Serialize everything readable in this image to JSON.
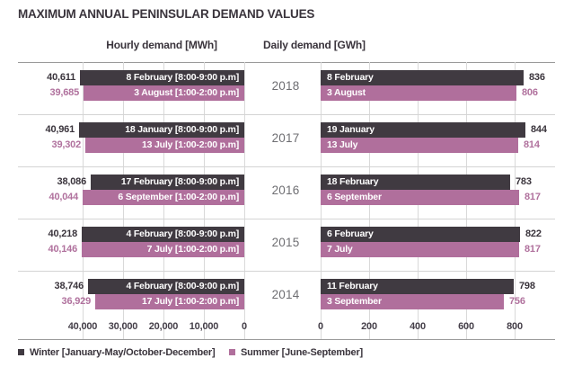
{
  "chart_data": {
    "type": "bar",
    "orientation": "horizontal",
    "title": "MAXIMUM ANNUAL PENINSULAR DEMAND VALUES",
    "panels": [
      {
        "id": "hourly",
        "header": "Hourly demand [MWh]",
        "unit": "MWh",
        "axis_ticks": [
          "40,000",
          "30,000",
          "20,000",
          "10,000",
          "0"
        ],
        "tick_step": 10000,
        "reversed": true
      },
      {
        "id": "daily",
        "header": "Daily demand  [GWh]",
        "unit": "GWh",
        "axis_ticks": [
          "0",
          "200",
          "400",
          "600",
          "800"
        ],
        "tick_step": 200,
        "reversed": false
      }
    ],
    "series_colors": {
      "winter": "#403a41",
      "summer": "#b06f9c"
    },
    "years": [
      {
        "year": "2018",
        "hourly": {
          "winter": {
            "value": 40611,
            "value_label": "40,611",
            "bar_label": "8 February [8:00-9:00 p.m]"
          },
          "summer": {
            "value": 39685,
            "value_label": "39,685",
            "bar_label": "3 August [1:00-2:00 p.m]"
          }
        },
        "daily": {
          "winter": {
            "value": 836,
            "value_label": "836",
            "bar_label": "8 February"
          },
          "summer": {
            "value": 806,
            "value_label": "806",
            "bar_label": "3 August"
          }
        }
      },
      {
        "year": "2017",
        "hourly": {
          "winter": {
            "value": 40961,
            "value_label": "40,961",
            "bar_label": "18 January [8:00-9:00 p.m]"
          },
          "summer": {
            "value": 39302,
            "value_label": "39,302",
            "bar_label": "13 July [1:00-2:00 p.m]"
          }
        },
        "daily": {
          "winter": {
            "value": 844,
            "value_label": "844",
            "bar_label": "19 January"
          },
          "summer": {
            "value": 814,
            "value_label": "814",
            "bar_label": "13 July"
          }
        }
      },
      {
        "year": "2016",
        "hourly": {
          "winter": {
            "value": 38086,
            "value_label": "38,086",
            "bar_label": "17 February [8:00-9:00 p.m]"
          },
          "summer": {
            "value": 40044,
            "value_label": "40,044",
            "bar_label": "6 September [1:00-2:00 p.m]"
          }
        },
        "daily": {
          "winter": {
            "value": 783,
            "value_label": "783",
            "bar_label": "18 February"
          },
          "summer": {
            "value": 817,
            "value_label": "817",
            "bar_label": "6 September"
          }
        }
      },
      {
        "year": "2015",
        "hourly": {
          "winter": {
            "value": 40218,
            "value_label": "40,218",
            "bar_label": "4 February [8:00-9:00 p.m]"
          },
          "summer": {
            "value": 40146,
            "value_label": "40,146",
            "bar_label": "7 July [1:00-2:00 p.m]"
          }
        },
        "daily": {
          "winter": {
            "value": 822,
            "value_label": "822",
            "bar_label": "6 February"
          },
          "summer": {
            "value": 817,
            "value_label": "817",
            "bar_label": "7 July"
          }
        }
      },
      {
        "year": "2014",
        "hourly": {
          "winter": {
            "value": 38746,
            "value_label": "38,746",
            "bar_label": "4 February [8:00-9:00 p.m]"
          },
          "summer": {
            "value": 36929,
            "value_label": "36,929",
            "bar_label": "17 July [1:00-2:00 p.m]"
          }
        },
        "daily": {
          "winter": {
            "value": 798,
            "value_label": "798",
            "bar_label": "11 February"
          },
          "summer": {
            "value": 756,
            "value_label": "756",
            "bar_label": "3 September"
          }
        }
      }
    ],
    "legend": [
      {
        "label": "Winter [January-May/October-December]",
        "color": "#403a41"
      },
      {
        "label": "Summer [June-September]",
        "color": "#b06f9c"
      }
    ]
  }
}
